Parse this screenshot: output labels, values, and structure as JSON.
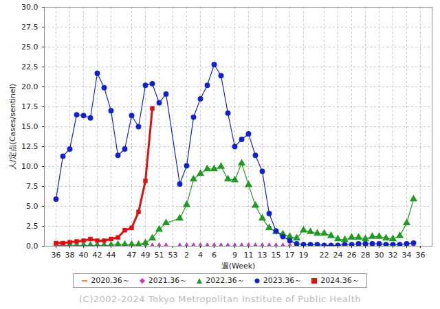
{
  "chart_data": {
    "type": "line",
    "x_label": "週(Week)",
    "y_label": "人/定点(Cases/sentinel)",
    "caption": "(C)2002-2024 Tokyo Metropolitan Institute of Public Health",
    "categories": [
      "36",
      null,
      "38",
      null,
      "40",
      null,
      "42",
      null,
      "44",
      null,
      null,
      "47",
      null,
      "49",
      null,
      "51",
      null,
      "53",
      null,
      "2",
      null,
      "4",
      null,
      "6",
      null,
      null,
      "9",
      null,
      "11",
      null,
      "13",
      null,
      "15",
      null,
      "17",
      null,
      "19",
      null,
      null,
      "22",
      null,
      "24",
      null,
      "26",
      null,
      "28",
      null,
      "30",
      null,
      "32",
      null,
      "34",
      null,
      "36"
    ],
    "ylim": [
      0,
      30
    ],
    "yticks": [
      {
        "value": 0,
        "label": "0.0"
      },
      {
        "value": 2.5,
        "label": "2.5"
      },
      {
        "value": 5,
        "label": "5.0"
      },
      {
        "value": 7.5,
        "label": "7.5"
      },
      {
        "value": 10,
        "label": "10.0"
      },
      {
        "value": 12.5,
        "label": "12.5"
      },
      {
        "value": 15,
        "label": "15.0"
      },
      {
        "value": 17.5,
        "label": "17.5"
      },
      {
        "value": 20,
        "label": "20.0"
      },
      {
        "value": 22.5,
        "label": "22.5"
      },
      {
        "value": 25,
        "label": "25.0"
      },
      {
        "value": 27.5,
        "label": "27.5"
      },
      {
        "value": 30,
        "label": "30.0"
      }
    ],
    "grid": true,
    "legend": "bottom",
    "series": [
      {
        "name": "2020.36～",
        "color": "#ff8c1a",
        "marker": "none",
        "values": [
          0.0,
          0.0,
          0.0,
          0.0,
          0.0,
          0.0,
          0.0,
          0.0,
          0.0,
          0.0,
          0.0,
          0.0,
          0.0,
          0.0,
          0.0,
          0.0,
          0.0,
          0.0,
          0.0,
          0.0,
          0.0,
          0.0,
          0.0,
          0.0,
          0.0,
          0.0,
          0.0,
          0.0,
          0.0,
          0.0,
          0.0,
          0.0,
          0.0,
          0.0,
          0.0,
          0.0,
          0.0,
          0.0,
          0.0,
          0.0,
          0.0,
          0.0,
          0.0,
          0.0,
          0.0,
          0.0,
          0.0,
          0.0,
          0.0,
          0.0,
          0.0,
          0.0,
          0.0,
          null
        ]
      },
      {
        "name": "2021.36～",
        "color": "#cc33cc",
        "marker": "diamond",
        "values": [
          0.0,
          0.0,
          0.0,
          0.0,
          0.0,
          0.0,
          0.0,
          0.0,
          0.0,
          0.0,
          0.0,
          0.0,
          0.0,
          0.0,
          0.0,
          0.0,
          0.0,
          null,
          0.0,
          0.0,
          0.0,
          0.0,
          0.0,
          0.0,
          0.0,
          0.0,
          0.0,
          0.0,
          0.0,
          0.0,
          0.0,
          0.0,
          0.0,
          0.0,
          0.0,
          0.0,
          0.0,
          0.0,
          0.0,
          0.0,
          0.0,
          0.0,
          0.0,
          0.0,
          0.0,
          0.0,
          0.0,
          0.0,
          0.0,
          0.0,
          0.0,
          0.0,
          0.0,
          null
        ]
      },
      {
        "name": "2022.36～",
        "color": "#229922",
        "marker": "triangle",
        "values": [
          0.1,
          0.1,
          0.1,
          0.1,
          0.1,
          0.1,
          0.1,
          0.1,
          0.1,
          0.2,
          0.2,
          0.2,
          0.2,
          0.4,
          1.0,
          2.1,
          2.9,
          null,
          3.5,
          5.2,
          8.4,
          9.1,
          9.7,
          9.7,
          10.0,
          8.4,
          8.3,
          10.4,
          7.7,
          5.1,
          3.5,
          2.3,
          1.8,
          1.5,
          1.2,
          1.0,
          2.0,
          1.8,
          1.6,
          1.6,
          1.3,
          0.9,
          0.8,
          1.1,
          1.1,
          0.9,
          1.2,
          1.2,
          1.0,
          0.9,
          1.3,
          2.9,
          5.9,
          null
        ]
      },
      {
        "name": "2023.36～",
        "color": "#1122cc",
        "marker": "circle",
        "values": [
          5.9,
          11.3,
          12.2,
          16.5,
          16.4,
          16.1,
          21.7,
          19.9,
          17.0,
          11.4,
          12.2,
          16.4,
          15.0,
          20.2,
          20.4,
          18.0,
          19.1,
          null,
          7.8,
          10.1,
          16.2,
          18.5,
          20.2,
          22.8,
          21.4,
          16.7,
          12.5,
          13.4,
          14.1,
          11.4,
          9.4,
          4.1,
          1.9,
          1.2,
          0.7,
          0.3,
          0.2,
          0.2,
          0.2,
          0.1,
          0.1,
          0.1,
          0.2,
          0.2,
          0.3,
          0.3,
          0.3,
          0.3,
          0.2,
          0.2,
          0.2,
          0.3,
          0.4,
          null
        ]
      },
      {
        "name": "2024.36～",
        "color": "#dd1111",
        "marker": "square",
        "values": [
          0.4,
          0.4,
          0.5,
          0.6,
          0.7,
          0.9,
          0.7,
          0.7,
          0.9,
          1.1,
          2.0,
          2.3,
          4.3,
          8.2,
          17.3,
          null,
          null,
          null,
          null,
          null,
          null,
          null,
          null,
          null,
          null,
          null,
          null,
          null,
          null,
          null,
          null,
          null,
          null,
          null,
          null,
          null,
          null,
          null,
          null,
          null,
          null,
          null,
          null,
          null,
          null,
          null,
          null,
          null,
          null,
          null,
          null,
          null,
          null,
          null
        ]
      }
    ]
  }
}
